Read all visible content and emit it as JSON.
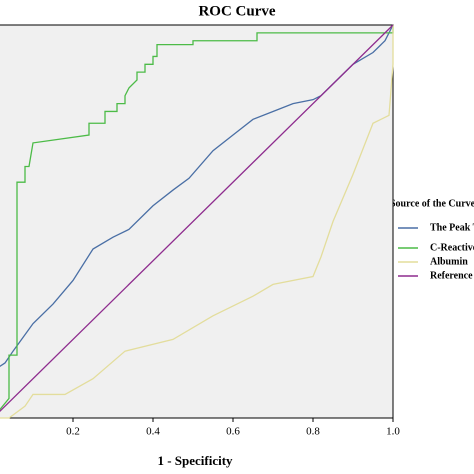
{
  "chart_data": {
    "type": "line",
    "title": "ROC Curve",
    "x_label": "1 - Specificity",
    "legend_title": "Source of the Curve",
    "xlim": [
      0,
      1
    ],
    "ylim": [
      0,
      1
    ],
    "xticks": [
      {
        "value": 0.2,
        "label": "0.2"
      },
      {
        "value": 0.4,
        "label": "0.4"
      },
      {
        "value": 0.6,
        "label": "0.6"
      },
      {
        "value": 0.8,
        "label": "0.8"
      },
      {
        "value": 1,
        "label": "1.0"
      }
    ],
    "series": [
      {
        "name": "The Peak Temperature",
        "color": "#4a6fa5",
        "x": [
          0,
          0,
          0.03,
          0.05,
          0.1,
          0.15,
          0.2,
          0.25,
          0.3,
          0.34,
          0.4,
          0.45,
          0.49,
          0.55,
          0.6,
          0.65,
          0.7,
          0.75,
          0.8,
          0.82,
          0.86,
          0.9,
          0.95,
          0.98,
          1
        ],
        "values": [
          0,
          0.12,
          0.14,
          0.17,
          0.24,
          0.29,
          0.35,
          0.43,
          0.46,
          0.48,
          0.54,
          0.58,
          0.61,
          0.68,
          0.72,
          0.76,
          0.78,
          0.8,
          0.81,
          0.82,
          0.86,
          0.9,
          0.93,
          0.96,
          1
        ]
      },
      {
        "name": "C-Reactive Protein",
        "color": "#4cbb47",
        "x": [
          0,
          0.04,
          0.04,
          0.06,
          0.06,
          0.08,
          0.08,
          0.09,
          0.1,
          0.24,
          0.24,
          0.28,
          0.28,
          0.31,
          0.31,
          0.33,
          0.33,
          0.34,
          0.36,
          0.36,
          0.38,
          0.38,
          0.4,
          0.4,
          0.41,
          0.41,
          0.5,
          0.5,
          0.66,
          0.66,
          1,
          1
        ],
        "values": [
          0,
          0.05,
          0.16,
          0.16,
          0.6,
          0.6,
          0.64,
          0.64,
          0.7,
          0.72,
          0.75,
          0.75,
          0.78,
          0.78,
          0.8,
          0.8,
          0.82,
          0.84,
          0.86,
          0.88,
          0.88,
          0.9,
          0.9,
          0.92,
          0.92,
          0.95,
          0.95,
          0.96,
          0.96,
          0.98,
          0.98,
          1
        ]
      },
      {
        "name": "Albumin",
        "color": "#e3dd9c",
        "x": [
          0,
          0.04,
          0.08,
          0.1,
          0.18,
          0.25,
          0.33,
          0.45,
          0.55,
          0.65,
          0.7,
          0.8,
          0.82,
          0.85,
          0.9,
          0.95,
          0.99,
          1,
          1
        ],
        "values": [
          0,
          0,
          0.03,
          0.06,
          0.06,
          0.1,
          0.17,
          0.2,
          0.26,
          0.31,
          0.34,
          0.36,
          0.41,
          0.5,
          0.62,
          0.75,
          0.77,
          0.9,
          1
        ]
      },
      {
        "name": "Reference Line",
        "color": "#8e2c8e",
        "x": [
          0,
          1
        ],
        "values": [
          0,
          1
        ]
      }
    ]
  }
}
